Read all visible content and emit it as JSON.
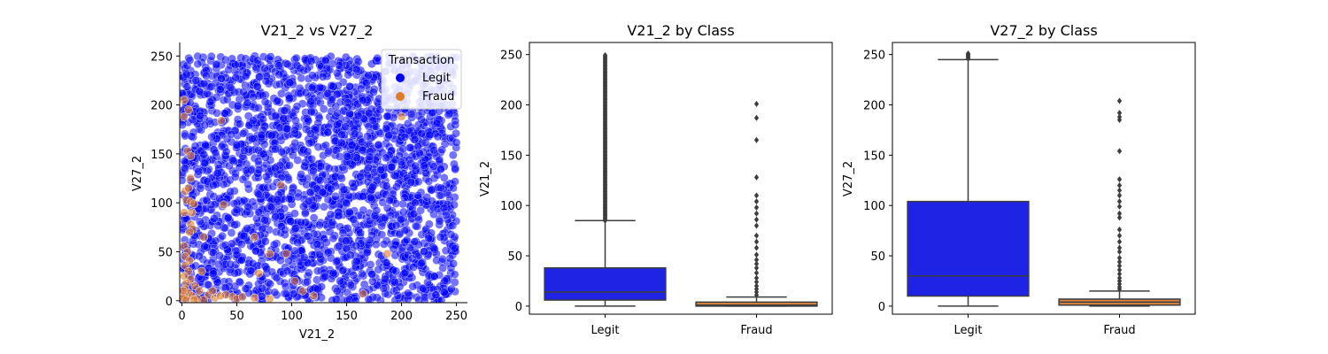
{
  "colors": {
    "legit": "#0000ff",
    "legit_box": "#1f24e4",
    "fraud": "#e07b27",
    "fraud_box": "#d9853f",
    "box_line": "#3d3d3d"
  },
  "chart_data": [
    {
      "type": "scatter",
      "title": "V21_2 vs V27_2",
      "xlabel": "V21_2",
      "ylabel": "V27_2",
      "xlim": [
        -2,
        260
      ],
      "ylim": [
        -2,
        262
      ],
      "xticks": [
        0,
        50,
        100,
        150,
        200,
        250
      ],
      "yticks": [
        0,
        50,
        100,
        150,
        200,
        250
      ],
      "legend": {
        "title": "Transaction",
        "position": "top-right",
        "entries": [
          "Legit",
          "Fraud"
        ]
      },
      "series": [
        {
          "name": "Legit",
          "color": "#0000ff",
          "description_fill": "dense uniform cloud",
          "x_range": [
            0,
            250
          ],
          "y_range": [
            0,
            250
          ]
        },
        {
          "name": "Fraud",
          "color": "#e07b27",
          "points": [
            [
              2,
              205
            ],
            [
              2,
              188
            ],
            [
              6,
              195
            ],
            [
              5,
              153
            ],
            [
              8,
              148
            ],
            [
              3,
              112
            ],
            [
              6,
              115
            ],
            [
              8,
              125
            ],
            [
              4,
              103
            ],
            [
              8,
              101
            ],
            [
              11,
              99
            ],
            [
              2,
              90
            ],
            [
              9,
              90
            ],
            [
              8,
              78
            ],
            [
              10,
              73
            ],
            [
              7,
              70
            ],
            [
              20,
              65
            ],
            [
              2,
              56
            ],
            [
              5,
              50
            ],
            [
              3,
              45
            ],
            [
              7,
              41
            ],
            [
              3,
              36
            ],
            [
              6,
              30
            ],
            [
              2,
              25
            ],
            [
              8,
              22
            ],
            [
              4,
              18
            ],
            [
              12,
              15
            ],
            [
              3,
              12
            ],
            [
              16,
              10
            ],
            [
              6,
              8
            ],
            [
              24,
              6
            ],
            [
              2,
              5
            ],
            [
              9,
              5
            ],
            [
              30,
              3
            ],
            [
              40,
              6
            ],
            [
              46,
              4
            ],
            [
              50,
              2
            ],
            [
              1,
              3
            ],
            [
              14,
              2
            ],
            [
              20,
              1
            ],
            [
              4,
              1
            ],
            [
              11,
              1
            ],
            [
              1,
              10
            ],
            [
              35,
              5
            ],
            [
              55,
              4
            ],
            [
              66,
              3
            ],
            [
              80,
              2
            ],
            [
              36,
              184
            ],
            [
              38,
              98
            ],
            [
              90,
              118
            ],
            [
              80,
              48
            ],
            [
              95,
              48
            ],
            [
              103,
              20
            ],
            [
              110,
              10
            ],
            [
              70,
              28
            ],
            [
              120,
              5
            ],
            [
              165,
              7
            ],
            [
              200,
              188
            ],
            [
              187,
              48
            ],
            [
              66,
              65
            ],
            [
              28,
              10
            ],
            [
              18,
              30
            ]
          ]
        }
      ]
    },
    {
      "type": "box",
      "title": "V21_2 by Class",
      "xlabel": "",
      "ylabel": "V21_2",
      "categories": [
        "Legit",
        "Fraud"
      ],
      "ylim": [
        -8,
        262
      ],
      "yticks": [
        0,
        50,
        100,
        150,
        200,
        250
      ],
      "boxes": [
        {
          "name": "Legit",
          "whisker_low": 0,
          "q1": 6,
          "median": 14,
          "q3": 38,
          "whisker_high": 85,
          "outlier_range": [
            85,
            250
          ],
          "color": "#1f24e4"
        },
        {
          "name": "Fraud",
          "whisker_low": 0,
          "q1": 0,
          "median": 1,
          "q3": 4,
          "whisker_high": 9,
          "outliers": [
            201,
            187,
            165,
            128,
            110,
            104,
            98,
            92,
            86,
            80,
            70,
            64,
            58,
            51,
            46,
            42,
            38,
            33,
            28,
            24,
            20,
            17,
            14,
            11
          ],
          "color": "#d9853f"
        }
      ]
    },
    {
      "type": "box",
      "title": "V27_2 by Class",
      "xlabel": "",
      "ylabel": "V27_2",
      "categories": [
        "Legit",
        "Fraud"
      ],
      "ylim": [
        -8,
        262
      ],
      "yticks": [
        0,
        50,
        100,
        150,
        200,
        250
      ],
      "boxes": [
        {
          "name": "Legit",
          "whisker_low": 0,
          "q1": 10,
          "median": 30,
          "q3": 104,
          "whisker_high": 245,
          "outliers": [
            246,
            247,
            248,
            249,
            250,
            251
          ],
          "color": "#1f24e4"
        },
        {
          "name": "Fraud",
          "whisker_low": 0,
          "q1": 1,
          "median": 4,
          "q3": 7,
          "whisker_high": 15,
          "outliers": [
            204,
            192,
            188,
            185,
            154,
            126,
            120,
            115,
            110,
            104,
            99,
            92,
            88,
            76,
            70,
            64,
            58,
            54,
            48,
            44,
            40,
            36,
            32,
            28,
            25,
            22,
            19,
            17
          ],
          "color": "#d9853f"
        }
      ]
    }
  ]
}
